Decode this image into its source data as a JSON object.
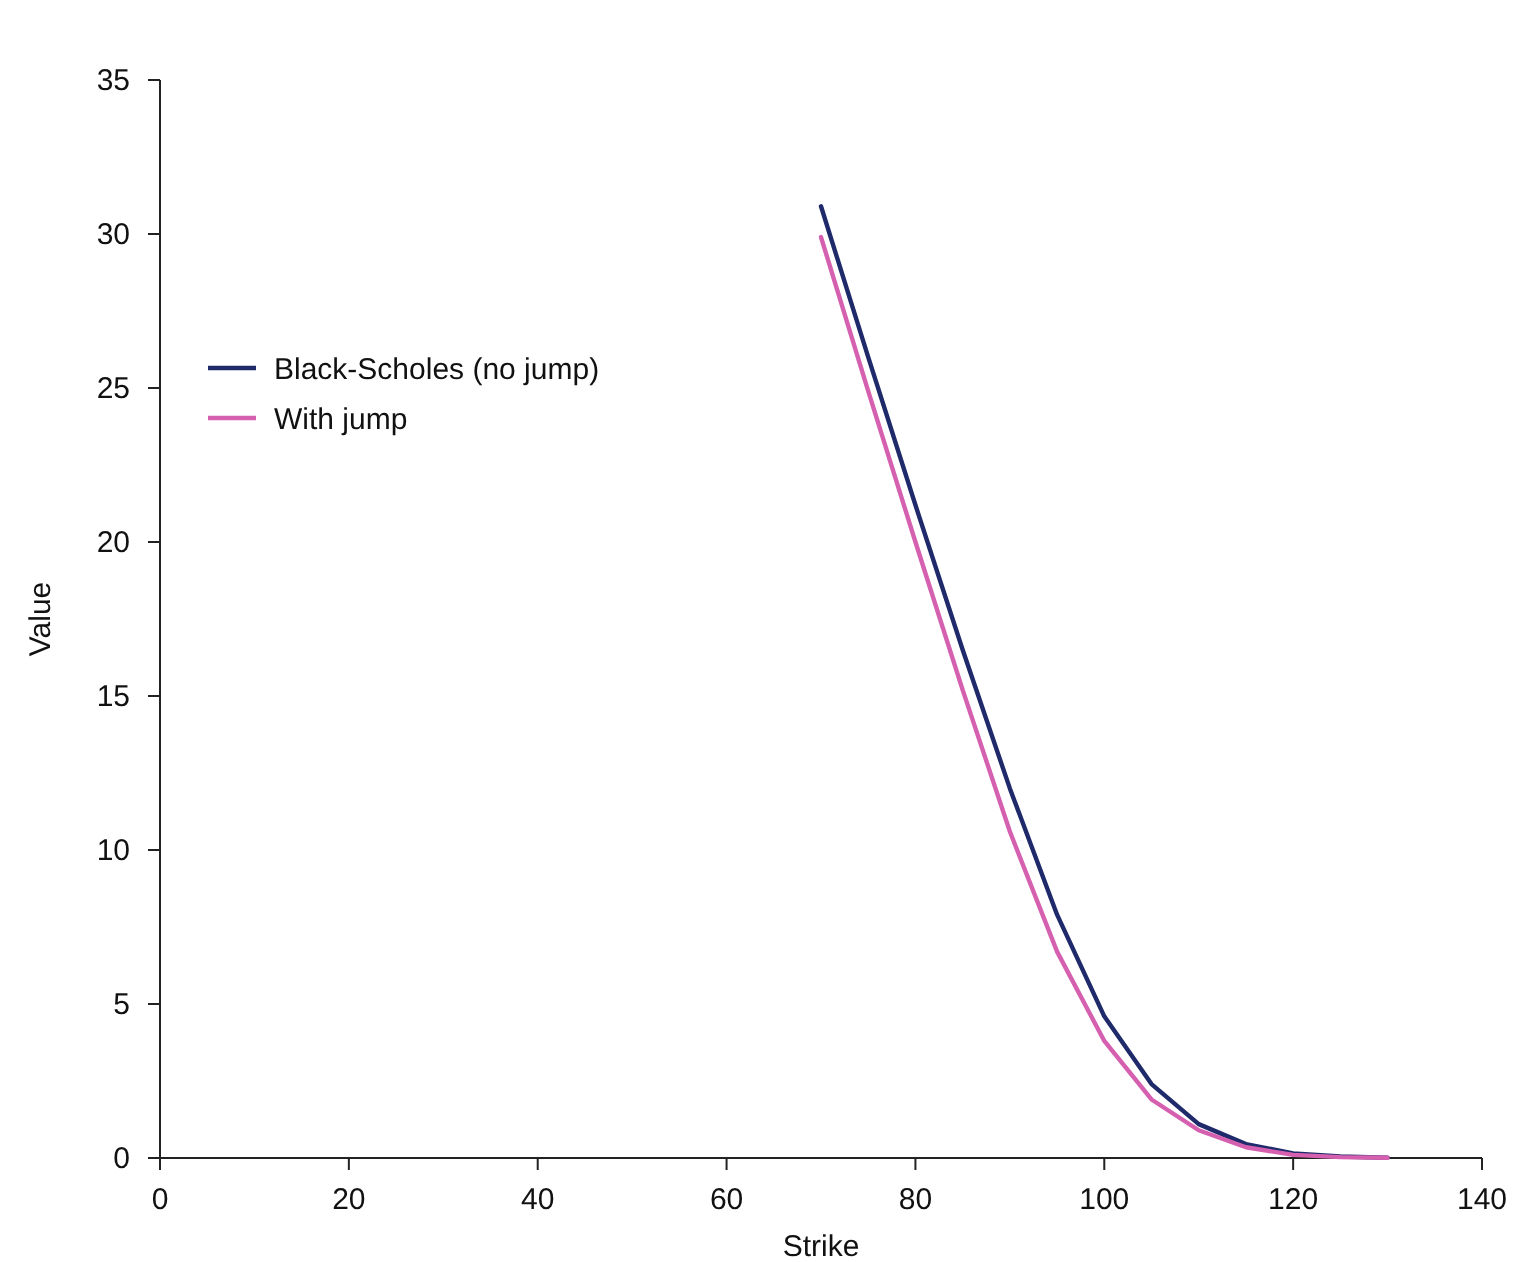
{
  "chart_data": {
    "type": "line",
    "xlabel": "Strike",
    "ylabel": "Value",
    "x": [
      70,
      75,
      80,
      85,
      90,
      95,
      100,
      105,
      110,
      115,
      120,
      125,
      130
    ],
    "series": [
      {
        "name": "Black-Scholes (no jump)",
        "color": "#1f2a6b",
        "values": [
          30.9,
          26.0,
          21.2,
          16.5,
          12.0,
          7.9,
          4.6,
          2.4,
          1.1,
          0.45,
          0.15,
          0.05,
          0.01
        ]
      },
      {
        "name": "With jump",
        "color": "#d660b0",
        "values": [
          29.9,
          24.9,
          20.0,
          15.2,
          10.6,
          6.7,
          3.8,
          1.9,
          0.9,
          0.35,
          0.1,
          0.03,
          0.01
        ]
      }
    ],
    "xlim": [
      0,
      140
    ],
    "xticks": [
      0,
      20,
      40,
      60,
      80,
      100,
      120,
      140
    ],
    "ylim": [
      0,
      35
    ],
    "yticks": [
      0,
      5,
      10,
      15,
      20,
      25,
      30,
      35
    ],
    "legend": "top left",
    "grid": false,
    "marker": "none",
    "line_style": "solid"
  }
}
